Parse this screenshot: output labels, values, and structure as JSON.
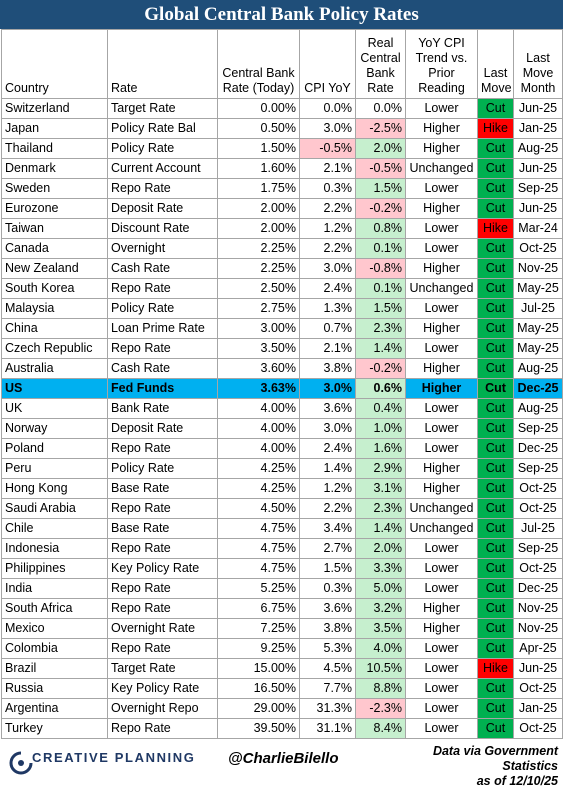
{
  "title": "Global Central Bank Policy Rates",
  "colors": {
    "header_bg": "#1f4e79",
    "highlight_row": "#00b0f0",
    "positive_real_rate": "#c6efce",
    "negative_real_rate": "#ffc7ce",
    "cut": "#00b050",
    "hike": "#ff0000"
  },
  "chart_data": {
    "type": "table",
    "title": "Global Central Bank Policy Rates",
    "columns": [
      "Country",
      "Rate",
      "Central Bank Rate (Today)",
      "CPI YoY",
      "Real Central Bank Rate",
      "YoY CPI Trend vs. Prior Reading",
      "Last Move",
      "Last Move Month"
    ],
    "rows": [
      [
        "Switzerland",
        "Target Rate",
        "0.00%",
        "0.0%",
        "0.0%",
        "Lower",
        "Cut",
        "Jun-25"
      ],
      [
        "Japan",
        "Policy Rate Bal",
        "0.50%",
        "3.0%",
        "-2.5%",
        "Higher",
        "Hike",
        "Jan-25"
      ],
      [
        "Thailand",
        "Policy Rate",
        "1.50%",
        "-0.5%",
        "2.0%",
        "Higher",
        "Cut",
        "Aug-25"
      ],
      [
        "Denmark",
        "Current Account",
        "1.60%",
        "2.1%",
        "-0.5%",
        "Unchanged",
        "Cut",
        "Jun-25"
      ],
      [
        "Sweden",
        "Repo Rate",
        "1.75%",
        "0.3%",
        "1.5%",
        "Lower",
        "Cut",
        "Sep-25"
      ],
      [
        "Eurozone",
        "Deposit Rate",
        "2.00%",
        "2.2%",
        "-0.2%",
        "Higher",
        "Cut",
        "Jun-25"
      ],
      [
        "Taiwan",
        "Discount Rate",
        "2.00%",
        "1.2%",
        "0.8%",
        "Lower",
        "Hike",
        "Mar-24"
      ],
      [
        "Canada",
        "Overnight",
        "2.25%",
        "2.2%",
        "0.1%",
        "Lower",
        "Cut",
        "Oct-25"
      ],
      [
        "New Zealand",
        "Cash Rate",
        "2.25%",
        "3.0%",
        "-0.8%",
        "Higher",
        "Cut",
        "Nov-25"
      ],
      [
        "South Korea",
        "Repo Rate",
        "2.50%",
        "2.4%",
        "0.1%",
        "Unchanged",
        "Cut",
        "May-25"
      ],
      [
        "Malaysia",
        "Policy Rate",
        "2.75%",
        "1.3%",
        "1.5%",
        "Lower",
        "Cut",
        "Jul-25"
      ],
      [
        "China",
        "Loan Prime Rate",
        "3.00%",
        "0.7%",
        "2.3%",
        "Higher",
        "Cut",
        "May-25"
      ],
      [
        "Czech Republic",
        "Repo Rate",
        "3.50%",
        "2.1%",
        "1.4%",
        "Lower",
        "Cut",
        "May-25"
      ],
      [
        "Australia",
        "Cash Rate",
        "3.60%",
        "3.8%",
        "-0.2%",
        "Higher",
        "Cut",
        "Aug-25"
      ],
      [
        "US",
        "Fed Funds",
        "3.63%",
        "3.0%",
        "0.6%",
        "Higher",
        "Cut",
        "Dec-25"
      ],
      [
        "UK",
        "Bank Rate",
        "4.00%",
        "3.6%",
        "0.4%",
        "Lower",
        "Cut",
        "Aug-25"
      ],
      [
        "Norway",
        "Deposit Rate",
        "4.00%",
        "3.0%",
        "1.0%",
        "Lower",
        "Cut",
        "Sep-25"
      ],
      [
        "Poland",
        "Repo Rate",
        "4.00%",
        "2.4%",
        "1.6%",
        "Lower",
        "Cut",
        "Dec-25"
      ],
      [
        "Peru",
        "Policy Rate",
        "4.25%",
        "1.4%",
        "2.9%",
        "Higher",
        "Cut",
        "Sep-25"
      ],
      [
        "Hong Kong",
        "Base Rate",
        "4.25%",
        "1.2%",
        "3.1%",
        "Higher",
        "Cut",
        "Oct-25"
      ],
      [
        "Saudi Arabia",
        "Repo Rate",
        "4.50%",
        "2.2%",
        "2.3%",
        "Unchanged",
        "Cut",
        "Oct-25"
      ],
      [
        "Chile",
        "Base Rate",
        "4.75%",
        "3.4%",
        "1.4%",
        "Unchanged",
        "Cut",
        "Jul-25"
      ],
      [
        "Indonesia",
        "Repo Rate",
        "4.75%",
        "2.7%",
        "2.0%",
        "Lower",
        "Cut",
        "Sep-25"
      ],
      [
        "Philippines",
        "Key Policy Rate",
        "4.75%",
        "1.5%",
        "3.3%",
        "Lower",
        "Cut",
        "Oct-25"
      ],
      [
        "India",
        "Repo Rate",
        "5.25%",
        "0.3%",
        "5.0%",
        "Lower",
        "Cut",
        "Dec-25"
      ],
      [
        "South Africa",
        "Repo Rate",
        "6.75%",
        "3.6%",
        "3.2%",
        "Higher",
        "Cut",
        "Nov-25"
      ],
      [
        "Mexico",
        "Overnight Rate",
        "7.25%",
        "3.8%",
        "3.5%",
        "Higher",
        "Cut",
        "Nov-25"
      ],
      [
        "Colombia",
        "Repo Rate",
        "9.25%",
        "5.3%",
        "4.0%",
        "Lower",
        "Cut",
        "Apr-25"
      ],
      [
        "Brazil",
        "Target Rate",
        "15.00%",
        "4.5%",
        "10.5%",
        "Lower",
        "Hike",
        "Jun-25"
      ],
      [
        "Russia",
        "Key Policy Rate",
        "16.50%",
        "7.7%",
        "8.8%",
        "Lower",
        "Cut",
        "Oct-25"
      ],
      [
        "Argentina",
        "Overnight Repo",
        "29.00%",
        "31.3%",
        "-2.3%",
        "Lower",
        "Cut",
        "Jan-25"
      ],
      [
        "Turkey",
        "Repo Rate",
        "39.50%",
        "31.1%",
        "8.4%",
        "Lower",
        "Cut",
        "Oct-25"
      ]
    ],
    "highlighted_row": "US",
    "negative_cpi_cell": [
      "Thailand"
    ]
  },
  "footer": {
    "logo_text": "CREATIVE PLANNING",
    "handle": "@CharlieBilello",
    "source_line1": "Data via Government Statistics",
    "source_line2": "as of 12/10/25"
  }
}
